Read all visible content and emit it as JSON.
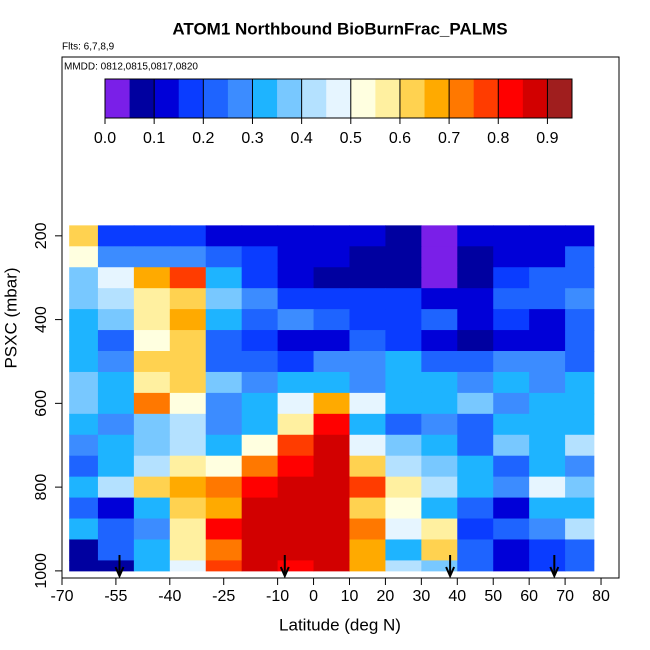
{
  "chart_data": {
    "type": "heatmap",
    "title": "ATOM1 Northbound BioBurnFrac_PALMS",
    "subtitle": "Flts: 6,7,8,9",
    "annotation": "MMDD: 0812,0815,0817,0820",
    "x_label": "Latitude (deg N)",
    "y_label": "PSXC (mbar)",
    "xlim": [
      -70,
      85
    ],
    "ylim": [
      1017,
      -227
    ],
    "xticks": [
      -70,
      -55,
      -40,
      -25,
      -10,
      0,
      10,
      20,
      30,
      40,
      50,
      60,
      70,
      80
    ],
    "yticks": [
      200,
      400,
      600,
      800,
      1000
    ],
    "x_edges": [
      -68,
      -60,
      -50,
      -40,
      -30,
      -20,
      -10,
      0,
      10,
      20,
      30,
      40,
      50,
      60,
      70,
      78
    ],
    "y_edges": [
      175,
      225,
      275,
      325,
      375,
      425,
      475,
      525,
      575,
      625,
      675,
      725,
      775,
      825,
      875,
      925,
      975,
      1000
    ],
    "z": [
      [
        0.6,
        0.15,
        0.15,
        0.15,
        0.12,
        0.12,
        0.12,
        0.12,
        0.12,
        0.05,
        0.04,
        0.1,
        0.1,
        0.1,
        0.12
      ],
      [
        0.5,
        0.28,
        0.25,
        0.25,
        0.22,
        0.18,
        0.12,
        0.1,
        0.08,
        0.08,
        0.03,
        0.08,
        0.1,
        0.12,
        0.2
      ],
      [
        0.35,
        0.45,
        0.65,
        0.75,
        0.3,
        0.15,
        0.1,
        0.08,
        0.08,
        0.05,
        0.04,
        0.08,
        0.15,
        0.2,
        0.2
      ],
      [
        0.35,
        0.4,
        0.55,
        0.6,
        0.35,
        0.25,
        0.15,
        0.15,
        0.18,
        0.15,
        0.12,
        0.12,
        0.2,
        0.2,
        0.25
      ],
      [
        0.3,
        0.35,
        0.55,
        0.65,
        0.3,
        0.2,
        0.25,
        0.2,
        0.15,
        0.18,
        0.2,
        0.12,
        0.15,
        0.1,
        0.2
      ],
      [
        0.3,
        0.2,
        0.5,
        0.6,
        0.2,
        0.15,
        0.1,
        0.12,
        0.2,
        0.15,
        0.1,
        0.05,
        0.1,
        0.12,
        0.2
      ],
      [
        0.3,
        0.25,
        0.6,
        0.62,
        0.22,
        0.2,
        0.15,
        0.28,
        0.25,
        0.3,
        0.2,
        0.22,
        0.25,
        0.25,
        0.2
      ],
      [
        0.35,
        0.3,
        0.55,
        0.6,
        0.35,
        0.25,
        0.3,
        0.3,
        0.25,
        0.3,
        0.3,
        0.25,
        0.3,
        0.28,
        0.3
      ],
      [
        0.35,
        0.3,
        0.7,
        0.5,
        0.25,
        0.3,
        0.45,
        0.65,
        0.45,
        0.3,
        0.32,
        0.35,
        0.28,
        0.3,
        0.3
      ],
      [
        0.3,
        0.25,
        0.35,
        0.4,
        0.25,
        0.3,
        0.55,
        0.8,
        0.3,
        0.2,
        0.25,
        0.2,
        0.3,
        0.3,
        0.32
      ],
      [
        0.25,
        0.3,
        0.35,
        0.4,
        0.3,
        0.5,
        0.75,
        0.85,
        0.45,
        0.35,
        0.3,
        0.2,
        0.35,
        0.3,
        0.4
      ],
      [
        0.2,
        0.3,
        0.4,
        0.55,
        0.5,
        0.7,
        0.8,
        0.85,
        0.6,
        0.4,
        0.35,
        0.3,
        0.2,
        0.3,
        0.25
      ],
      [
        0.3,
        0.4,
        0.6,
        0.65,
        0.7,
        0.8,
        0.85,
        0.85,
        0.75,
        0.55,
        0.4,
        0.3,
        0.25,
        0.45,
        0.35
      ],
      [
        0.2,
        0.12,
        0.3,
        0.6,
        0.65,
        0.85,
        0.88,
        0.88,
        0.6,
        0.5,
        0.3,
        0.2,
        0.1,
        0.3,
        0.3
      ],
      [
        0.3,
        0.2,
        0.25,
        0.55,
        0.8,
        0.87,
        0.88,
        0.88,
        0.7,
        0.45,
        0.55,
        0.15,
        0.2,
        0.25,
        0.4
      ],
      [
        0.05,
        0.2,
        0.3,
        0.55,
        0.7,
        0.87,
        0.88,
        0.88,
        0.65,
        0.3,
        0.6,
        0.2,
        0.1,
        0.15,
        0.2
      ],
      [
        0.05,
        0.05,
        0.3,
        0.45,
        0.75,
        0.85,
        0.82,
        0.85,
        0.65,
        0.4,
        0.35,
        0.2,
        0.1,
        0.15,
        0.2
      ]
    ],
    "arrows_x": [
      -54,
      -8,
      38,
      67
    ],
    "colorbar": {
      "range": [
        0,
        0.95
      ],
      "ticks": [
        {
          "value": 0,
          "label": "0.0"
        },
        0.1,
        0.2,
        0.3,
        0.4,
        0.5,
        0.6,
        0.7,
        0.8,
        0.9
      ],
      "colors": [
        "#7a1fe8",
        "#0000a0",
        "#0000d8",
        "#0a3cff",
        "#1e64ff",
        "#3c8cff",
        "#1eb4ff",
        "#78c8ff",
        "#b4e1ff",
        "#e6f5ff",
        "#ffffe0",
        "#fff0a0",
        "#ffd250",
        "#ffaa00",
        "#ff7800",
        "#ff3c00",
        "#ff0000",
        "#d20000",
        "#a01e1e"
      ]
    }
  }
}
